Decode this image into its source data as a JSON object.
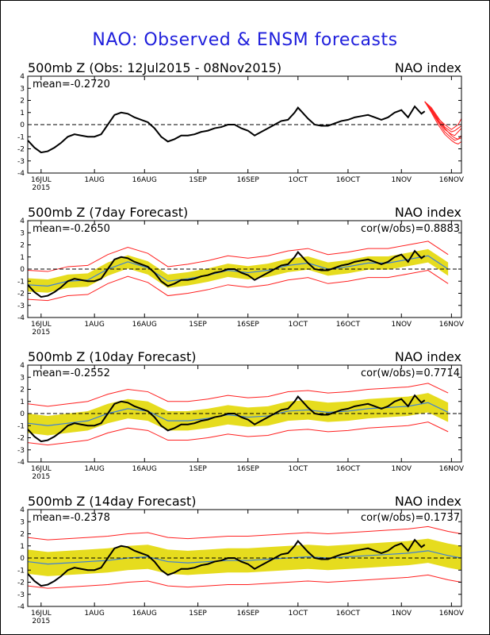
{
  "title": "NAO: Observed & ENSM forecasts",
  "colors": {
    "title": "#1f1fdc",
    "observed": "#000000",
    "ensemble_mean": "#3d7fd8",
    "spread_band": "#e6dc1e",
    "range_lines": "#ff2020",
    "zero_line": "#000000"
  },
  "chart_data": [
    {
      "type": "line",
      "title": "500mb Z (Obs: 12Jul2015 - 08Nov2015)",
      "right_title": "NAO index",
      "mean_label": "mean=-0.2720",
      "cor_label": "",
      "ylim": [
        -4,
        4
      ],
      "yticks": [
        "4",
        "3",
        "2",
        "1",
        "0",
        "-1",
        "-2",
        "-3",
        "-4"
      ],
      "xlim": [
        0,
        130
      ],
      "xticks": [
        {
          "day": 4,
          "label": "16JUL",
          "sub": "2015"
        },
        {
          "day": 20,
          "label": "1AUG"
        },
        {
          "day": 35,
          "label": "16AUG"
        },
        {
          "day": 51,
          "label": "1SEP"
        },
        {
          "day": 66,
          "label": "16SEP"
        },
        {
          "day": 81,
          "label": "1OCT"
        },
        {
          "day": 96,
          "label": "16OCT"
        },
        {
          "day": 112,
          "label": "1NOV"
        },
        {
          "day": 127,
          "label": "16NOV"
        }
      ],
      "zero_dashed": true,
      "series": [
        {
          "role": "observed",
          "x": [
            0,
            2,
            4,
            6,
            8,
            10,
            12,
            14,
            16,
            18,
            20,
            22,
            24,
            26,
            28,
            30,
            32,
            34,
            36,
            38,
            40,
            42,
            44,
            46,
            48,
            50,
            52,
            54,
            56,
            58,
            60,
            62,
            64,
            66,
            68,
            70,
            72,
            74,
            76,
            78,
            80,
            81,
            82,
            84,
            86,
            88,
            90,
            92,
            94,
            96,
            98,
            100,
            102,
            104,
            106,
            108,
            110,
            112,
            114,
            116,
            118,
            119
          ],
          "y": [
            -1.3,
            -1.9,
            -2.3,
            -2.2,
            -1.9,
            -1.5,
            -1.0,
            -0.8,
            -0.9,
            -1.0,
            -1.0,
            -0.8,
            0.0,
            0.8,
            1.0,
            0.9,
            0.6,
            0.4,
            0.2,
            -0.3,
            -1.0,
            -1.4,
            -1.2,
            -0.9,
            -0.9,
            -0.8,
            -0.6,
            -0.5,
            -0.3,
            -0.2,
            0.0,
            0.0,
            -0.3,
            -0.5,
            -0.9,
            -0.6,
            -0.3,
            0.0,
            0.3,
            0.4,
            1.0,
            1.4,
            1.1,
            0.5,
            0.0,
            -0.1,
            -0.1,
            0.1,
            0.3,
            0.4,
            0.6,
            0.7,
            0.8,
            0.6,
            0.4,
            0.6,
            1.0,
            1.2,
            0.6,
            1.5,
            0.9,
            1.1
          ]
        },
        {
          "role": "forecast_members",
          "x": [
            119,
            121,
            123,
            125,
            127,
            128,
            129,
            130
          ],
          "members": [
            [
              1.9,
              1.3,
              0.5,
              0.0,
              -0.4,
              -0.2,
              0.0,
              0.5
            ],
            [
              1.9,
              1.2,
              0.3,
              -0.4,
              -0.8,
              -0.9,
              -0.6,
              -0.3
            ],
            [
              1.9,
              1.1,
              0.2,
              -0.6,
              -1.1,
              -1.3,
              -1.2,
              -0.9
            ],
            [
              1.9,
              1.0,
              0.0,
              -0.8,
              -1.3,
              -1.5,
              -1.6,
              -1.4
            ],
            [
              1.9,
              1.4,
              0.6,
              -0.2,
              -0.6,
              -0.5,
              -0.3,
              -0.1
            ],
            [
              1.9,
              1.2,
              0.4,
              -0.3,
              -0.9,
              -1.1,
              -1.2,
              -1.1
            ]
          ]
        }
      ]
    },
    {
      "type": "line",
      "title": "500mb Z (7day Forecast)",
      "right_title": "NAO index",
      "mean_label": "mean=-0.2650",
      "cor_label": "cor(w/obs)=0.8883",
      "ylim": [
        -4,
        4
      ],
      "yticks": [
        "4",
        "3",
        "2",
        "1",
        "0",
        "-1",
        "-2",
        "-3",
        "-4"
      ],
      "xlim": [
        0,
        130
      ],
      "xticks": [
        {
          "day": 4,
          "label": "16JUL",
          "sub": "2015"
        },
        {
          "day": 20,
          "label": "1AUG"
        },
        {
          "day": 35,
          "label": "16AUG"
        },
        {
          "day": 51,
          "label": "1SEP"
        },
        {
          "day": 66,
          "label": "16SEP"
        },
        {
          "day": 81,
          "label": "1OCT"
        },
        {
          "day": 96,
          "label": "16OCT"
        },
        {
          "day": 112,
          "label": "1NOV"
        },
        {
          "day": 127,
          "label": "16NOV"
        }
      ],
      "zero_dashed": true,
      "series": [
        {
          "role": "ensemble_mean",
          "x": [
            0,
            6,
            12,
            18,
            24,
            30,
            36,
            42,
            48,
            54,
            60,
            66,
            72,
            78,
            84,
            90,
            96,
            102,
            108,
            114,
            120,
            126
          ],
          "y": [
            -1.3,
            -1.4,
            -1.0,
            -0.9,
            0.0,
            0.6,
            0.1,
            -1.0,
            -0.8,
            -0.5,
            -0.1,
            -0.3,
            -0.1,
            0.3,
            0.5,
            0.0,
            0.2,
            0.5,
            0.5,
            0.8,
            1.1,
            0.0
          ],
          "band": 0.55,
          "envelope": 1.2
        },
        {
          "role": "observed",
          "x": [
            0,
            2,
            4,
            6,
            8,
            10,
            12,
            14,
            16,
            18,
            20,
            22,
            24,
            26,
            28,
            30,
            32,
            34,
            36,
            38,
            40,
            42,
            44,
            46,
            48,
            50,
            52,
            54,
            56,
            58,
            60,
            62,
            64,
            66,
            68,
            70,
            72,
            74,
            76,
            78,
            80,
            81,
            82,
            84,
            86,
            88,
            90,
            92,
            94,
            96,
            98,
            100,
            102,
            104,
            106,
            108,
            110,
            112,
            114,
            116,
            118,
            119
          ],
          "y": [
            -1.3,
            -1.9,
            -2.3,
            -2.2,
            -1.9,
            -1.5,
            -1.0,
            -0.8,
            -0.9,
            -1.0,
            -1.0,
            -0.8,
            0.0,
            0.8,
            1.0,
            0.9,
            0.6,
            0.4,
            0.2,
            -0.3,
            -1.0,
            -1.4,
            -1.2,
            -0.9,
            -0.9,
            -0.8,
            -0.6,
            -0.5,
            -0.3,
            -0.2,
            0.0,
            0.0,
            -0.3,
            -0.5,
            -0.9,
            -0.6,
            -0.3,
            0.0,
            0.3,
            0.4,
            1.0,
            1.4,
            1.1,
            0.5,
            0.0,
            -0.1,
            -0.1,
            0.1,
            0.3,
            0.4,
            0.6,
            0.7,
            0.8,
            0.6,
            0.4,
            0.6,
            1.0,
            1.2,
            0.6,
            1.5,
            0.9,
            1.1
          ]
        }
      ]
    },
    {
      "type": "line",
      "title": "500mb Z (10day Forecast)",
      "right_title": "NAO index",
      "mean_label": "mean=-0.2552",
      "cor_label": "cor(w/obs)=0.7714",
      "ylim": [
        -4,
        4
      ],
      "yticks": [
        "4",
        "3",
        "2",
        "1",
        "0",
        "-1",
        "-2",
        "-3",
        "-4"
      ],
      "xlim": [
        0,
        130
      ],
      "xticks": [
        {
          "day": 4,
          "label": "16JUL",
          "sub": "2015"
        },
        {
          "day": 20,
          "label": "1AUG"
        },
        {
          "day": 35,
          "label": "16AUG"
        },
        {
          "day": 51,
          "label": "1SEP"
        },
        {
          "day": 66,
          "label": "16SEP"
        },
        {
          "day": 81,
          "label": "1OCT"
        },
        {
          "day": 96,
          "label": "16OCT"
        },
        {
          "day": 112,
          "label": "1NOV"
        },
        {
          "day": 127,
          "label": "16NOV"
        }
      ],
      "zero_dashed": true,
      "series": [
        {
          "role": "ensemble_mean",
          "x": [
            0,
            6,
            12,
            18,
            24,
            30,
            36,
            42,
            48,
            54,
            60,
            66,
            72,
            78,
            84,
            90,
            96,
            102,
            108,
            114,
            120,
            126
          ],
          "y": [
            -0.8,
            -1.0,
            -0.8,
            -0.6,
            0.0,
            0.4,
            0.2,
            -0.6,
            -0.6,
            -0.4,
            -0.1,
            -0.3,
            -0.2,
            0.2,
            0.3,
            0.1,
            0.2,
            0.4,
            0.5,
            0.6,
            0.9,
            0.1
          ],
          "band": 0.8,
          "envelope": 1.6
        },
        {
          "role": "observed",
          "x": [
            0,
            2,
            4,
            6,
            8,
            10,
            12,
            14,
            16,
            18,
            20,
            22,
            24,
            26,
            28,
            30,
            32,
            34,
            36,
            38,
            40,
            42,
            44,
            46,
            48,
            50,
            52,
            54,
            56,
            58,
            60,
            62,
            64,
            66,
            68,
            70,
            72,
            74,
            76,
            78,
            80,
            81,
            82,
            84,
            86,
            88,
            90,
            92,
            94,
            96,
            98,
            100,
            102,
            104,
            106,
            108,
            110,
            112,
            114,
            116,
            118,
            119
          ],
          "y": [
            -1.3,
            -1.9,
            -2.3,
            -2.2,
            -1.9,
            -1.5,
            -1.0,
            -0.8,
            -0.9,
            -1.0,
            -1.0,
            -0.8,
            0.0,
            0.8,
            1.0,
            0.9,
            0.6,
            0.4,
            0.2,
            -0.3,
            -1.0,
            -1.4,
            -1.2,
            -0.9,
            -0.9,
            -0.8,
            -0.6,
            -0.5,
            -0.3,
            -0.2,
            0.0,
            0.0,
            -0.3,
            -0.5,
            -0.9,
            -0.6,
            -0.3,
            0.0,
            0.3,
            0.4,
            1.0,
            1.4,
            1.1,
            0.5,
            0.0,
            -0.1,
            -0.1,
            0.1,
            0.3,
            0.4,
            0.6,
            0.7,
            0.8,
            0.6,
            0.4,
            0.6,
            1.0,
            1.2,
            0.6,
            1.5,
            0.9,
            1.1
          ]
        }
      ]
    },
    {
      "type": "line",
      "title": "500mb Z (14day Forecast)",
      "right_title": "NAO index",
      "mean_label": "mean=-0.2378",
      "cor_label": "cor(w/obs)=0.1737",
      "ylim": [
        -4,
        4
      ],
      "yticks": [
        "4",
        "3",
        "2",
        "1",
        "0",
        "-1",
        "-2",
        "-3",
        "-4"
      ],
      "xlim": [
        0,
        130
      ],
      "xticks": [
        {
          "day": 4,
          "label": "16JUL",
          "sub": "2015"
        },
        {
          "day": 20,
          "label": "1AUG"
        },
        {
          "day": 35,
          "label": "16AUG"
        },
        {
          "day": 51,
          "label": "1SEP"
        },
        {
          "day": 66,
          "label": "16SEP"
        },
        {
          "day": 81,
          "label": "1OCT"
        },
        {
          "day": 96,
          "label": "16OCT"
        },
        {
          "day": 112,
          "label": "1NOV"
        },
        {
          "day": 127,
          "label": "16NOV"
        }
      ],
      "zero_dashed": true,
      "series": [
        {
          "role": "ensemble_mean",
          "x": [
            0,
            6,
            12,
            18,
            24,
            30,
            36,
            42,
            48,
            54,
            60,
            66,
            72,
            78,
            84,
            90,
            96,
            102,
            108,
            114,
            120,
            126,
            130
          ],
          "y": [
            -0.3,
            -0.5,
            -0.4,
            -0.3,
            -0.2,
            0.0,
            0.1,
            -0.3,
            -0.4,
            -0.3,
            -0.2,
            -0.2,
            -0.1,
            0.0,
            0.1,
            0.0,
            0.1,
            0.2,
            0.3,
            0.4,
            0.6,
            0.2,
            0.0
          ],
          "band": 1.0,
          "envelope": 2.0
        },
        {
          "role": "observed",
          "x": [
            0,
            2,
            4,
            6,
            8,
            10,
            12,
            14,
            16,
            18,
            20,
            22,
            24,
            26,
            28,
            30,
            32,
            34,
            36,
            38,
            40,
            42,
            44,
            46,
            48,
            50,
            52,
            54,
            56,
            58,
            60,
            62,
            64,
            66,
            68,
            70,
            72,
            74,
            76,
            78,
            80,
            81,
            82,
            84,
            86,
            88,
            90,
            92,
            94,
            96,
            98,
            100,
            102,
            104,
            106,
            108,
            110,
            112,
            114,
            116,
            118,
            119
          ],
          "y": [
            -1.3,
            -1.9,
            -2.3,
            -2.2,
            -1.9,
            -1.5,
            -1.0,
            -0.8,
            -0.9,
            -1.0,
            -1.0,
            -0.8,
            0.0,
            0.8,
            1.0,
            0.9,
            0.6,
            0.4,
            0.2,
            -0.3,
            -1.0,
            -1.4,
            -1.2,
            -0.9,
            -0.9,
            -0.8,
            -0.6,
            -0.5,
            -0.3,
            -0.2,
            0.0,
            0.0,
            -0.3,
            -0.5,
            -0.9,
            -0.6,
            -0.3,
            0.0,
            0.3,
            0.4,
            1.0,
            1.4,
            1.1,
            0.5,
            0.0,
            -0.1,
            -0.1,
            0.1,
            0.3,
            0.4,
            0.6,
            0.7,
            0.8,
            0.6,
            0.4,
            0.6,
            1.0,
            1.2,
            0.6,
            1.5,
            0.9,
            1.1
          ]
        }
      ]
    }
  ]
}
